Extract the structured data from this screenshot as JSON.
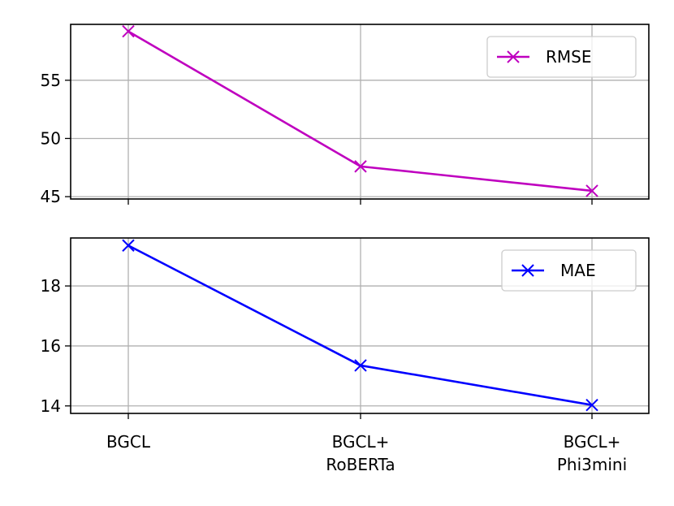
{
  "chart_data": [
    {
      "type": "line",
      "categories": [
        "BGCL",
        "BGCL+\nRoBERTa",
        "BGCL+\nPhi3mini"
      ],
      "series": [
        {
          "name": "RMSE",
          "values": [
            59.2,
            47.6,
            45.5
          ],
          "color": "#bf00bf",
          "marker": "x"
        }
      ],
      "ylim": [
        44.8,
        59.8
      ],
      "yticks": [
        45,
        50,
        55
      ],
      "xtick_labels_shown": false,
      "grid": true,
      "legend": "upper right"
    },
    {
      "type": "line",
      "categories": [
        "BGCL",
        "BGCL+\nRoBERTa",
        "BGCL+\nPhi3mini"
      ],
      "series": [
        {
          "name": "MAE",
          "values": [
            19.35,
            15.35,
            14.03
          ],
          "color": "#0000ff",
          "marker": "x"
        }
      ],
      "ylim": [
        13.75,
        19.6
      ],
      "yticks": [
        14,
        16,
        18
      ],
      "xtick_labels_shown": true,
      "grid": true,
      "legend": "upper right"
    }
  ]
}
